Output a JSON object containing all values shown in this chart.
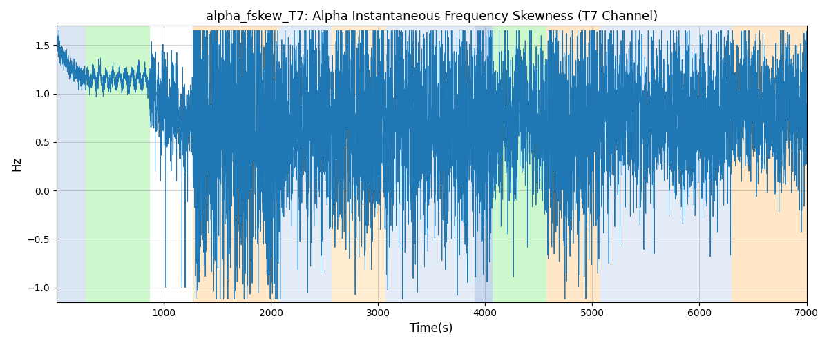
{
  "title": "alpha_fskew_T7: Alpha Instantaneous Frequency Skewness (T7 Channel)",
  "xlabel": "Time(s)",
  "ylabel": "Hz",
  "xlim": [
    0,
    7000
  ],
  "ylim": [
    -1.15,
    1.7
  ],
  "yticks": [
    -1.0,
    -0.5,
    0.0,
    0.5,
    1.0,
    1.5
  ],
  "xticks": [
    1000,
    2000,
    3000,
    4000,
    5000,
    6000,
    7000
  ],
  "line_color": "#1f77b4",
  "line_width": 0.7,
  "background_color": "#ffffff",
  "bands": [
    {
      "xmin": 0,
      "xmax": 270,
      "color": "#aec6e8",
      "alpha": 0.45
    },
    {
      "xmin": 270,
      "xmax": 870,
      "color": "#90ee90",
      "alpha": 0.45
    },
    {
      "xmin": 1270,
      "xmax": 2070,
      "color": "#ffd59b",
      "alpha": 0.55
    },
    {
      "xmin": 2070,
      "xmax": 2570,
      "color": "#aec6e8",
      "alpha": 0.35
    },
    {
      "xmin": 2570,
      "xmax": 3070,
      "color": "#ffd59b",
      "alpha": 0.45
    },
    {
      "xmin": 3070,
      "xmax": 3900,
      "color": "#aec6e8",
      "alpha": 0.35
    },
    {
      "xmin": 3900,
      "xmax": 4070,
      "color": "#aec6e8",
      "alpha": 0.7
    },
    {
      "xmin": 4070,
      "xmax": 4570,
      "color": "#90ee90",
      "alpha": 0.45
    },
    {
      "xmin": 4570,
      "xmax": 5070,
      "color": "#ffd59b",
      "alpha": 0.55
    },
    {
      "xmin": 5070,
      "xmax": 6300,
      "color": "#aec6e8",
      "alpha": 0.35
    },
    {
      "xmin": 6300,
      "xmax": 7000,
      "color": "#ffd59b",
      "alpha": 0.55
    }
  ],
  "seed": 12345
}
